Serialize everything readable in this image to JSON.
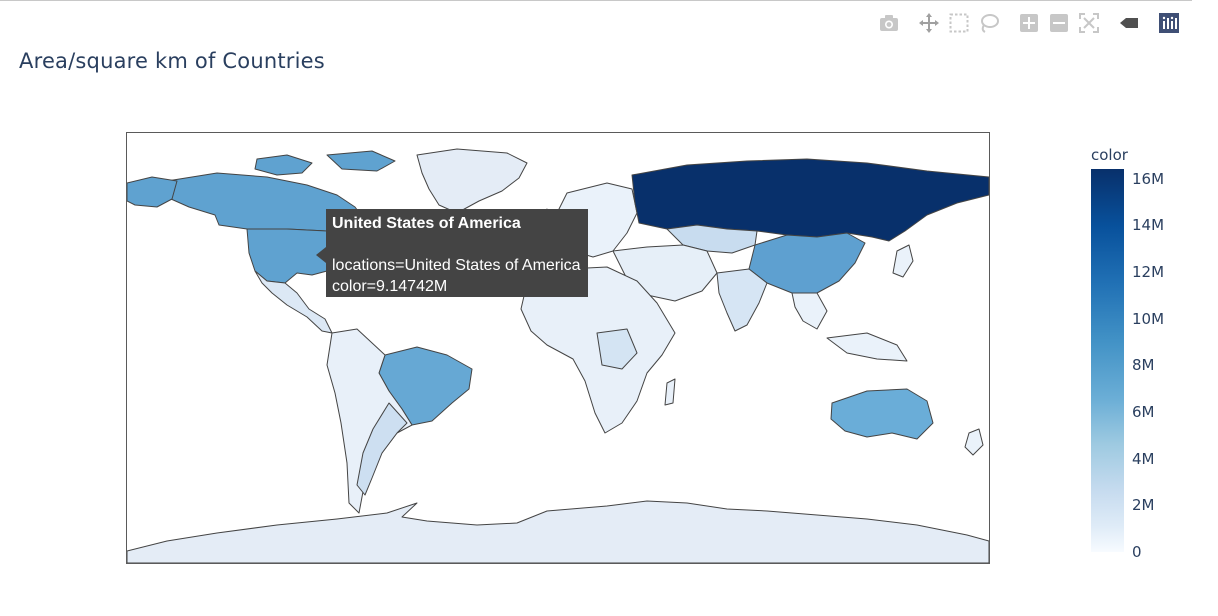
{
  "title": "Area/square km of Countries",
  "modebar": [
    {
      "name": "camera-icon",
      "label": "Download plot as a png"
    },
    {
      "name": "pan-icon",
      "label": "Pan"
    },
    {
      "name": "box-select-icon",
      "label": "Box Select"
    },
    {
      "name": "lasso-select-icon",
      "label": "Lasso Select"
    },
    {
      "name": "zoom-in-icon",
      "label": "Zoom in"
    },
    {
      "name": "zoom-out-icon",
      "label": "Zoom out"
    },
    {
      "name": "reset-view-icon",
      "label": "Reset"
    },
    {
      "name": "compare-hover-icon",
      "label": "Toggle Spike Lines"
    },
    {
      "name": "plotly-logo-icon",
      "label": "Produced with Plotly"
    }
  ],
  "tooltip": {
    "title": "United States of America",
    "line1": "locations=United States of America",
    "line2": "color=9.14742M"
  },
  "colorbar": {
    "title": "color",
    "ticks": [
      "16M",
      "14M",
      "12M",
      "10M",
      "8M",
      "6M",
      "4M",
      "2M",
      "0"
    ],
    "colorscale": [
      "#f7fbff",
      "#deebf7",
      "#c6dbef",
      "#9ecae1",
      "#6baed6",
      "#4292c6",
      "#2171b5",
      "#08519c",
      "#08306b"
    ],
    "range": [
      0,
      16377742
    ]
  },
  "chart_data": {
    "type": "choropleth",
    "title": "Area/square km of Countries",
    "color_label": "color",
    "projection": "equirectangular",
    "hovered": {
      "location": "United States of America",
      "value": 9147420
    },
    "values": [
      {
        "location": "Russia",
        "value": 16377742
      },
      {
        "location": "Canada",
        "value": 9093507
      },
      {
        "location": "United States of America",
        "value": 9147420
      },
      {
        "location": "China",
        "value": 9388211
      },
      {
        "location": "Brazil",
        "value": 8358140
      },
      {
        "location": "Australia",
        "value": 7682300
      },
      {
        "location": "Greenland",
        "value": 2166086
      },
      {
        "location": "Antarctica",
        "value": 2000000
      },
      {
        "location": "India",
        "value": 2973190
      },
      {
        "location": "Argentina",
        "value": 2736690
      },
      {
        "location": "Kazakhstan",
        "value": 2699700
      }
    ]
  }
}
